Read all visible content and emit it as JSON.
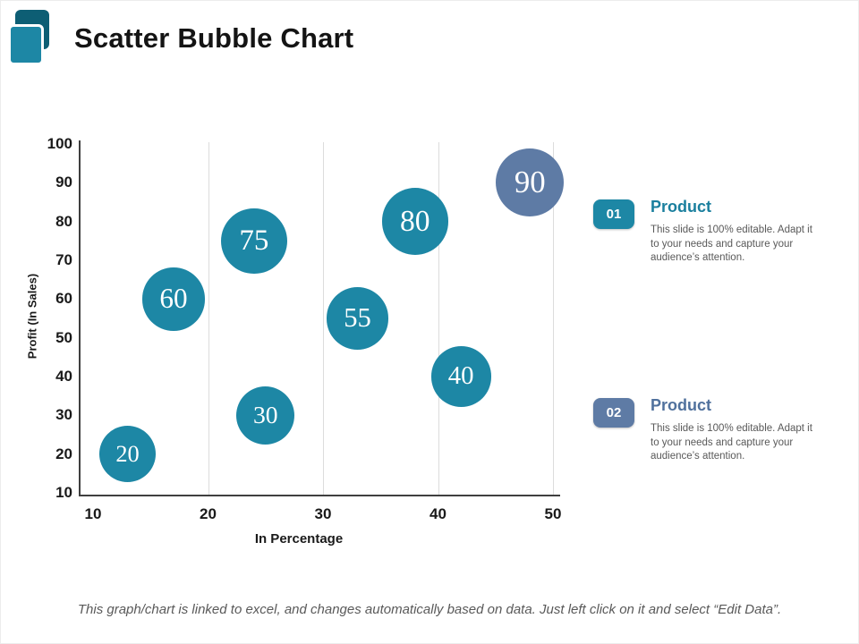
{
  "slide": {
    "title": "Scatter Bubble Chart",
    "footer": "This graph/chart is linked to excel, and changes automatically based on data. Just left click on it and select “Edit Data”."
  },
  "products": [
    {
      "badge": "01",
      "title": "Product",
      "description": "This slide is 100% editable. Adapt it to your needs and capture your audience’s attention.",
      "badge_color": "#1d87a5",
      "title_color": "#1a7f9e"
    },
    {
      "badge": "02",
      "title": "Product",
      "description": "This slide is 100% editable. Adapt it to your needs and capture your audience’s attention.",
      "badge_color": "#5e7ba5",
      "title_color": "#50719d"
    }
  ],
  "chart_data": {
    "type": "scatter",
    "title": "",
    "xlabel": "In Percentage",
    "ylabel": "Profit  (In Sales)",
    "xlim": [
      10,
      50
    ],
    "ylim": [
      10,
      100
    ],
    "x_ticks": [
      10,
      20,
      30,
      40,
      50
    ],
    "y_ticks": [
      10,
      20,
      30,
      40,
      50,
      60,
      70,
      80,
      90,
      100
    ],
    "grid": "vertical-only",
    "legend": "none",
    "colors": {
      "teal": "#1d87a5",
      "slate": "#5e7ba5"
    },
    "points": [
      {
        "x": 13,
        "y": 20,
        "value": 20,
        "label": "20",
        "color_key": "teal"
      },
      {
        "x": 17,
        "y": 60,
        "value": 60,
        "label": "60",
        "color_key": "teal"
      },
      {
        "x": 24,
        "y": 75,
        "value": 75,
        "label": "75",
        "color_key": "teal"
      },
      {
        "x": 25,
        "y": 30,
        "value": 30,
        "label": "30",
        "color_key": "teal"
      },
      {
        "x": 33,
        "y": 55,
        "value": 55,
        "label": "55",
        "color_key": "teal"
      },
      {
        "x": 38,
        "y": 80,
        "value": 80,
        "label": "80",
        "color_key": "teal"
      },
      {
        "x": 42,
        "y": 40,
        "value": 40,
        "label": "40",
        "color_key": "teal"
      },
      {
        "x": 48,
        "y": 90,
        "value": 90,
        "label": "90",
        "color_key": "slate"
      }
    ]
  }
}
